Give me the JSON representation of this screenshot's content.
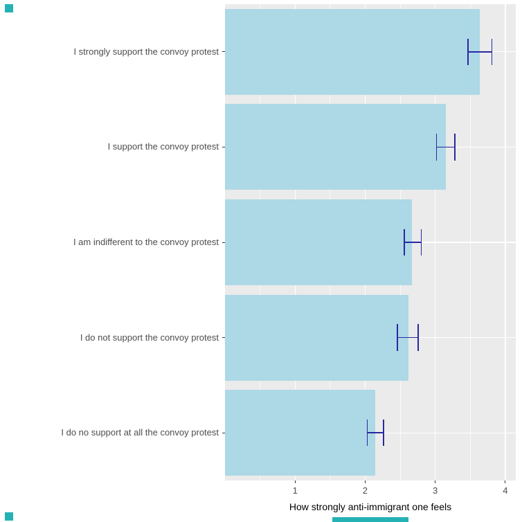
{
  "chart_data": {
    "type": "bar",
    "orientation": "horizontal",
    "title": "",
    "xlabel": "How strongly anti-immigrant one feels",
    "ylabel": "",
    "categories": [
      "I strongly support the convoy protest",
      "I support the convoy protest",
      "I am indifferent to the convoy protest",
      "I do not support the convoy protest",
      "I do no support at all the convoy protest"
    ],
    "values": [
      3.64,
      3.15,
      2.67,
      2.62,
      2.14
    ],
    "error_low": [
      3.47,
      3.02,
      2.56,
      2.46,
      2.03
    ],
    "error_high": [
      3.81,
      3.28,
      2.8,
      2.76,
      2.26
    ],
    "x_ticks": [
      1,
      2,
      3,
      4
    ],
    "x_minor_ticks": [
      0.5,
      1.5,
      2.5,
      3.5
    ],
    "xlim": [
      0,
      4.15
    ],
    "grid": true,
    "legend": "none",
    "bar_color": "#add8e6",
    "error_color": "#2828a0",
    "panel_bg": "#ebebeb",
    "grid_color": "#ffffff",
    "axis_text_color": "#4d4d4d",
    "accent_color": "#25b2b5"
  }
}
